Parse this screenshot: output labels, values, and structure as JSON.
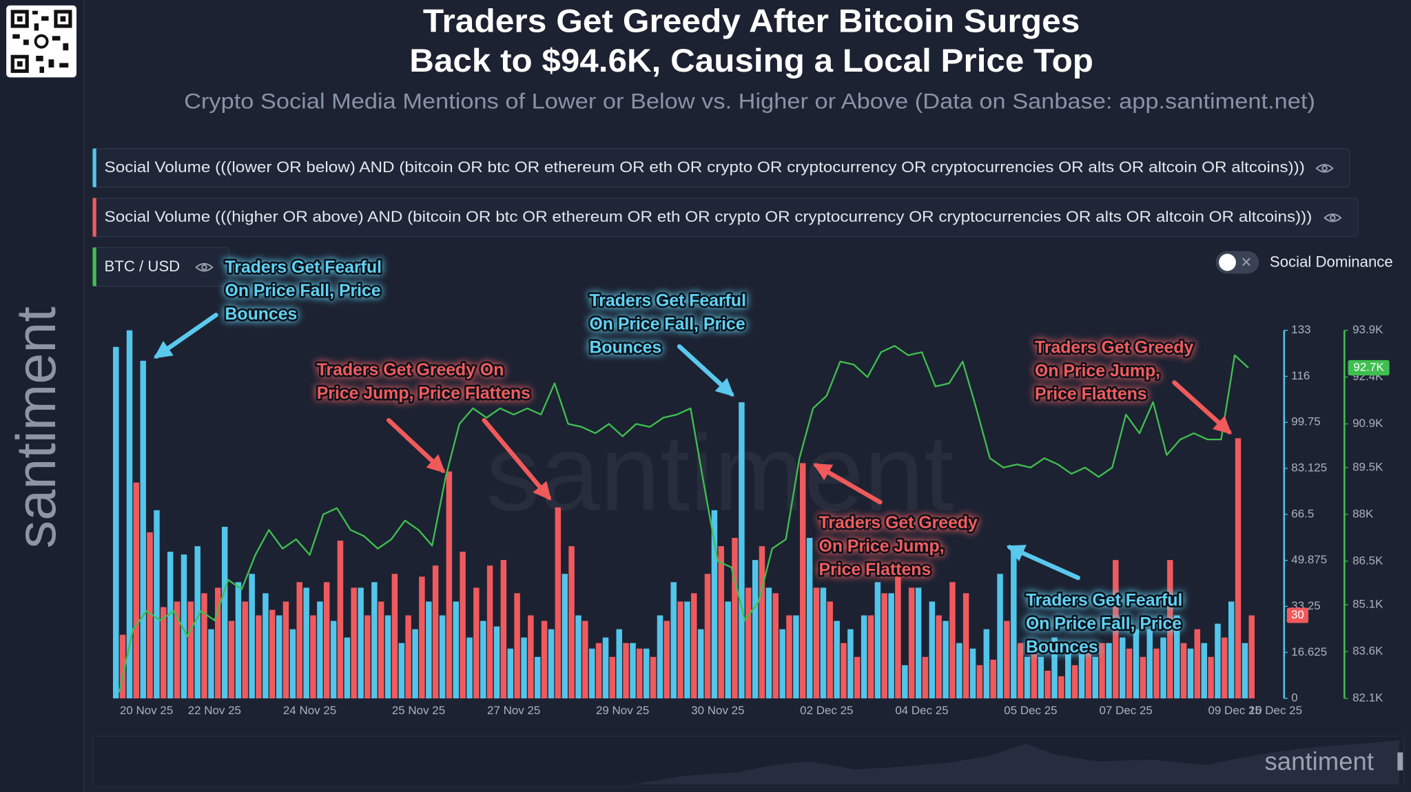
{
  "header": {
    "title_lines": [
      "Traders Get Greedy After Bitcoin Surges",
      "Back to $94.6K, Causing a Local Price Top"
    ],
    "subtitle": "Crypto Social Media Mentions of Lower or Below vs. Higher or Above (Data on Sanbase: app.santiment.net)"
  },
  "controls": {
    "toggle_label": "Social Dominance"
  },
  "branding": {
    "watermark": "santiment"
  },
  "chart_data": {
    "type": "combo",
    "categories": [
      null,
      null,
      "20 Nov 25",
      null,
      null,
      null,
      null,
      "22 Nov 25",
      null,
      null,
      null,
      null,
      null,
      null,
      "24 Nov 25",
      null,
      null,
      null,
      null,
      null,
      null,
      null,
      "25 Nov 25",
      null,
      null,
      null,
      null,
      null,
      null,
      "27 Nov 25",
      null,
      null,
      null,
      null,
      null,
      null,
      null,
      "29 Nov 25",
      null,
      null,
      null,
      null,
      null,
      null,
      "30 Nov 25",
      null,
      null,
      null,
      null,
      null,
      null,
      null,
      "02 Dec 25",
      null,
      null,
      null,
      null,
      null,
      null,
      "04 Dec 25",
      null,
      null,
      null,
      null,
      null,
      null,
      null,
      "05 Dec 25",
      null,
      null,
      null,
      null,
      null,
      null,
      "07 Dec 25",
      null,
      null,
      null,
      null,
      null,
      null,
      null,
      "09 Dec 25",
      null,
      null,
      "10 Dec 25"
    ],
    "series": [
      {
        "name": "Social Volume (((lower OR below) AND (bitcoin OR btc OR ethereum OR eth OR crypto OR cryptocurrency OR cryptocurrencies OR alts OR altcoin OR altcoins)))",
        "type": "bar",
        "color": "#52c5ea",
        "values": [
          127,
          133,
          122,
          68,
          53,
          52,
          55,
          25,
          62,
          42,
          45,
          38,
          30,
          25,
          40,
          35,
          28,
          22,
          40,
          42,
          30,
          20,
          25,
          35,
          30,
          35,
          22,
          28,
          26,
          18,
          22,
          15,
          25,
          45,
          30,
          18,
          22,
          25,
          20,
          18,
          30,
          42,
          35,
          25,
          68,
          35,
          107,
          50,
          40,
          25,
          30,
          58,
          40,
          28,
          25,
          30,
          42,
          38,
          12,
          40,
          35,
          28,
          20,
          18,
          25,
          45,
          55,
          15,
          15,
          22,
          18,
          16,
          15,
          20,
          22,
          25,
          25,
          22,
          30,
          18,
          20,
          27,
          35,
          20,
          null,
          null
        ]
      },
      {
        "name": "Social Volume (((higher OR above) AND (bitcoin OR btc OR ethereum OR eth OR crypto OR cryptocurrency OR cryptocurrencies OR alts OR altcoin OR altcoins)))",
        "type": "bar",
        "color": "#f05a5d",
        "show_last_value": true,
        "values": [
          23,
          78,
          60,
          33,
          35,
          35,
          38,
          40,
          28,
          35,
          30,
          32,
          35,
          42,
          30,
          42,
          57,
          40,
          30,
          35,
          45,
          30,
          44,
          48,
          82,
          53,
          40,
          48,
          50,
          38,
          30,
          28,
          69,
          55,
          28,
          20,
          15,
          20,
          18,
          15,
          28,
          35,
          38,
          45,
          55,
          58,
          40,
          55,
          38,
          30,
          85,
          40,
          35,
          20,
          15,
          30,
          38,
          45,
          40,
          15,
          30,
          42,
          38,
          12,
          14,
          28,
          20,
          16,
          10,
          8,
          12,
          20,
          20,
          50,
          18,
          15,
          18,
          50,
          20,
          25,
          15,
          22,
          94,
          30,
          null,
          null
        ]
      },
      {
        "name": "BTC / USD",
        "type": "line",
        "axis": "y2",
        "color": "#3fbf4f",
        "values": [
          82.3,
          84.3,
          84.9,
          84.6,
          84.9,
          84.1,
          84.9,
          84.6,
          85.9,
          85.6,
          86.7,
          87.5,
          86.9,
          87.2,
          86.7,
          88,
          88.2,
          87.5,
          87.3,
          86.9,
          87.2,
          87.8,
          87.5,
          87,
          89.2,
          90.9,
          91.4,
          91.1,
          91.4,
          91.2,
          91.4,
          91.2,
          92.2,
          90.9,
          90.8,
          90.6,
          90.9,
          90.5,
          90.9,
          90.8,
          91.1,
          91.2,
          91.4,
          88.9,
          86.5,
          86.3,
          84.6,
          85.2,
          86.9,
          87.2,
          89.8,
          91.4,
          91.8,
          92.9,
          92.8,
          92.4,
          93.2,
          93.4,
          93.1,
          93.2,
          92.1,
          92.2,
          92.9,
          91.4,
          89.8,
          89.5,
          89.6,
          89.5,
          89.8,
          89.6,
          89.3,
          89.5,
          89.2,
          89.5,
          91.2,
          90.6,
          91.6,
          89.9,
          90.4,
          90.6,
          90.4,
          90.4,
          93.1,
          92.7,
          null,
          null
        ],
        "value_labels": [
          null,
          null,
          null,
          null,
          null,
          null,
          null,
          null,
          null,
          null,
          null,
          null,
          null,
          null,
          null,
          null,
          null,
          null,
          null,
          null,
          null,
          null,
          null,
          null,
          null,
          null,
          null,
          null,
          null,
          null,
          null,
          null,
          null,
          null,
          null,
          null,
          null,
          null,
          null,
          null,
          null,
          null,
          null,
          null,
          null,
          null,
          null,
          null,
          null,
          null,
          null,
          null,
          null,
          null,
          null,
          null,
          null,
          null,
          null,
          null,
          null,
          null,
          null,
          null,
          null,
          null,
          null,
          null,
          null,
          null,
          null,
          null,
          null,
          null,
          null,
          null,
          null,
          null,
          null,
          null,
          null,
          null,
          null,
          "92.7K",
          null,
          null
        ]
      }
    ],
    "ylim": [
      0,
      133
    ],
    "yticks": [
      0,
      16.625,
      33.25,
      49.875,
      66.5,
      83.125,
      99.75,
      {
        "value": 116.375,
        "label": "116"
      },
      133
    ],
    "y2lim": [
      82.1,
      93.9
    ],
    "y2ticks": [
      {
        "value": 82.1,
        "label": "82.1K"
      },
      {
        "value": 83.6,
        "label": "83.6K"
      },
      {
        "value": 85.1,
        "label": "85.1K"
      },
      {
        "value": 86.5,
        "label": "86.5K"
      },
      {
        "value": 88,
        "label": "88K"
      },
      {
        "value": 89.5,
        "label": "89.5K"
      },
      {
        "value": 90.9,
        "label": "90.9K"
      },
      {
        "value": 92.4,
        "label": "92.4K"
      },
      {
        "value": 93.9,
        "label": "93.9K"
      }
    ],
    "annotations": [
      {
        "lines": [
          "Traders Get Fearful",
          "On Price Fall, Price",
          "Bounces"
        ],
        "color": "#5fd3f3"
      },
      {
        "lines": [
          "Traders Get Greedy On",
          "Price Jump, Price Flattens"
        ],
        "color": "#f25c5c"
      },
      {
        "lines": [
          "Traders Get Fearful",
          "On Price Fall, Price",
          "Bounces"
        ],
        "color": "#5fd3f3"
      },
      {
        "lines": [
          "Traders Get Greedy",
          "On Price Jump,",
          "Price Flattens"
        ],
        "color": "#f25c5c"
      },
      {
        "lines": [
          "Traders Get Greedy",
          "On Price Jump,",
          "Price Flattens"
        ],
        "color": "#f25c5c"
      },
      {
        "lines": [
          "Traders Get Fearful",
          "On Price Fall, Price",
          "Bounces"
        ],
        "color": "#5fd3f3"
      }
    ]
  }
}
